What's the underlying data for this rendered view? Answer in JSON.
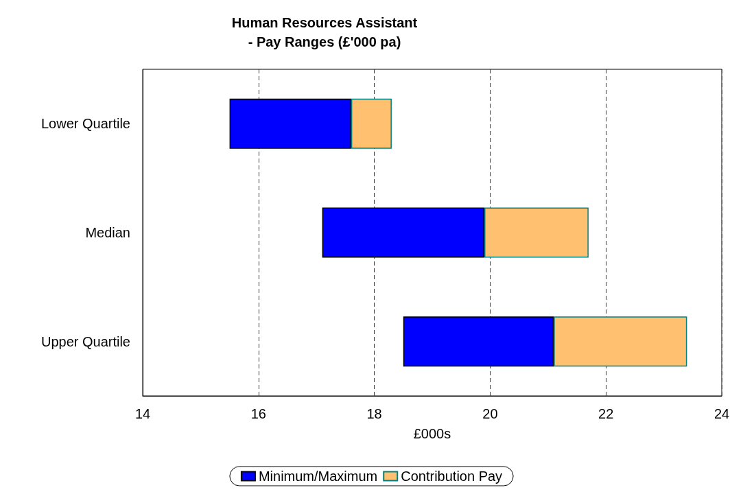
{
  "chart_data": {
    "type": "bar",
    "title": "Human Resources Assistant\n- Pay Ranges (£'000 pa)",
    "xlabel": "£000s",
    "orientation": "horizontal",
    "categories": [
      "Lower Quartile",
      "Median",
      "Upper Quartile"
    ],
    "series": [
      {
        "name": "Minimum/Maximum",
        "color": "#0000ff",
        "base": [
          15.5,
          17.1,
          18.5
        ],
        "values": [
          2.1,
          2.8,
          2.6
        ]
      },
      {
        "name": "Contribution Pay",
        "color": "#ffc070",
        "base": [
          17.6,
          19.9,
          21.1
        ],
        "values": [
          0.7,
          1.8,
          2.3
        ]
      }
    ],
    "xlim": [
      14,
      24
    ],
    "xticks": [
      14,
      16,
      18,
      20,
      22,
      24
    ],
    "grid": "x",
    "legend": "bottom"
  }
}
